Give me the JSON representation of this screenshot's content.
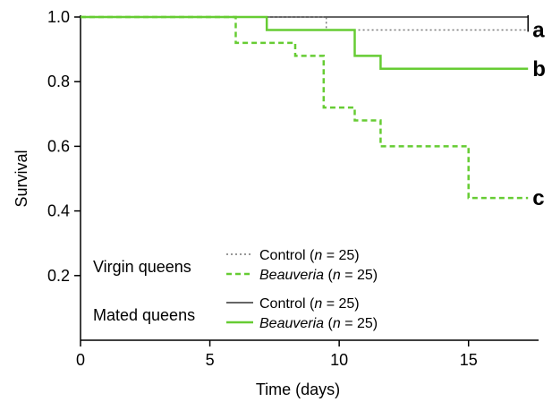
{
  "chart_data": {
    "type": "line",
    "subtype": "kaplan-meier-step",
    "xlabel": "Time (days)",
    "ylabel": "Survival",
    "xlim": [
      0,
      17.5
    ],
    "ylim": [
      0,
      1.0
    ],
    "x_ticks": [
      0,
      5,
      10,
      15
    ],
    "x_tick_labels": [
      "0",
      "5",
      "10",
      "15"
    ],
    "y_ticks": [
      0.2,
      0.4,
      0.6,
      0.8,
      1.0
    ],
    "y_tick_labels": [
      "0.2",
      "0.4",
      "0.6",
      "0.8",
      "1.0"
    ],
    "grid": false,
    "legend_placement": "bottom-left",
    "colors": {
      "control": "#333333",
      "virgin_control": "#777777",
      "beauveria": "#66cc33"
    },
    "legend_groups": [
      {
        "label": "Virgin queens",
        "entries": [
          {
            "series": "virgin_control",
            "name": "Control",
            "n_label": "n",
            "n_value": "= 25)"
          },
          {
            "series": "virgin_beauveria",
            "name": "Beauveria",
            "n_label": "n",
            "n_value": "= 25)"
          }
        ]
      },
      {
        "label": "Mated queens",
        "entries": [
          {
            "series": "mated_control",
            "name": "Control",
            "n_label": "n",
            "n_value": "= 25)"
          },
          {
            "series": "mated_beauveria",
            "name": "Beauveria",
            "n_label": "n",
            "n_value": "= 25)"
          }
        ]
      }
    ],
    "series": [
      {
        "id": "mated_control",
        "group": "Mated queens",
        "treatment": "Control",
        "style": "solid",
        "color": "#333333",
        "x": [
          0,
          17.3
        ],
        "y": [
          1.0,
          1.0
        ]
      },
      {
        "id": "virgin_control",
        "group": "Virgin queens",
        "treatment": "Control",
        "style": "dotted",
        "color": "#777777",
        "x": [
          0,
          9.5,
          17.3
        ],
        "y": [
          1.0,
          0.96,
          0.96
        ]
      },
      {
        "id": "mated_beauveria",
        "group": "Mated queens",
        "treatment": "Beauveria",
        "style": "solid",
        "color": "#66cc33",
        "x": [
          0,
          7.2,
          10.6,
          11.6,
          17.3
        ],
        "y": [
          1.0,
          0.96,
          0.88,
          0.84,
          0.84
        ]
      },
      {
        "id": "virgin_beauveria",
        "group": "Virgin queens",
        "treatment": "Beauveria",
        "style": "dashed",
        "color": "#66cc33",
        "x": [
          0,
          6.0,
          8.3,
          9.4,
          10.6,
          11.6,
          15.0,
          17.3
        ],
        "y": [
          1.0,
          0.92,
          0.88,
          0.72,
          0.68,
          0.6,
          0.44,
          0.44
        ]
      }
    ],
    "annotations": [
      {
        "text": "a",
        "x": 17.3,
        "y": 0.96
      },
      {
        "text": "b",
        "x": 17.3,
        "y": 0.84
      },
      {
        "text": "c",
        "x": 17.3,
        "y": 0.44
      }
    ]
  }
}
